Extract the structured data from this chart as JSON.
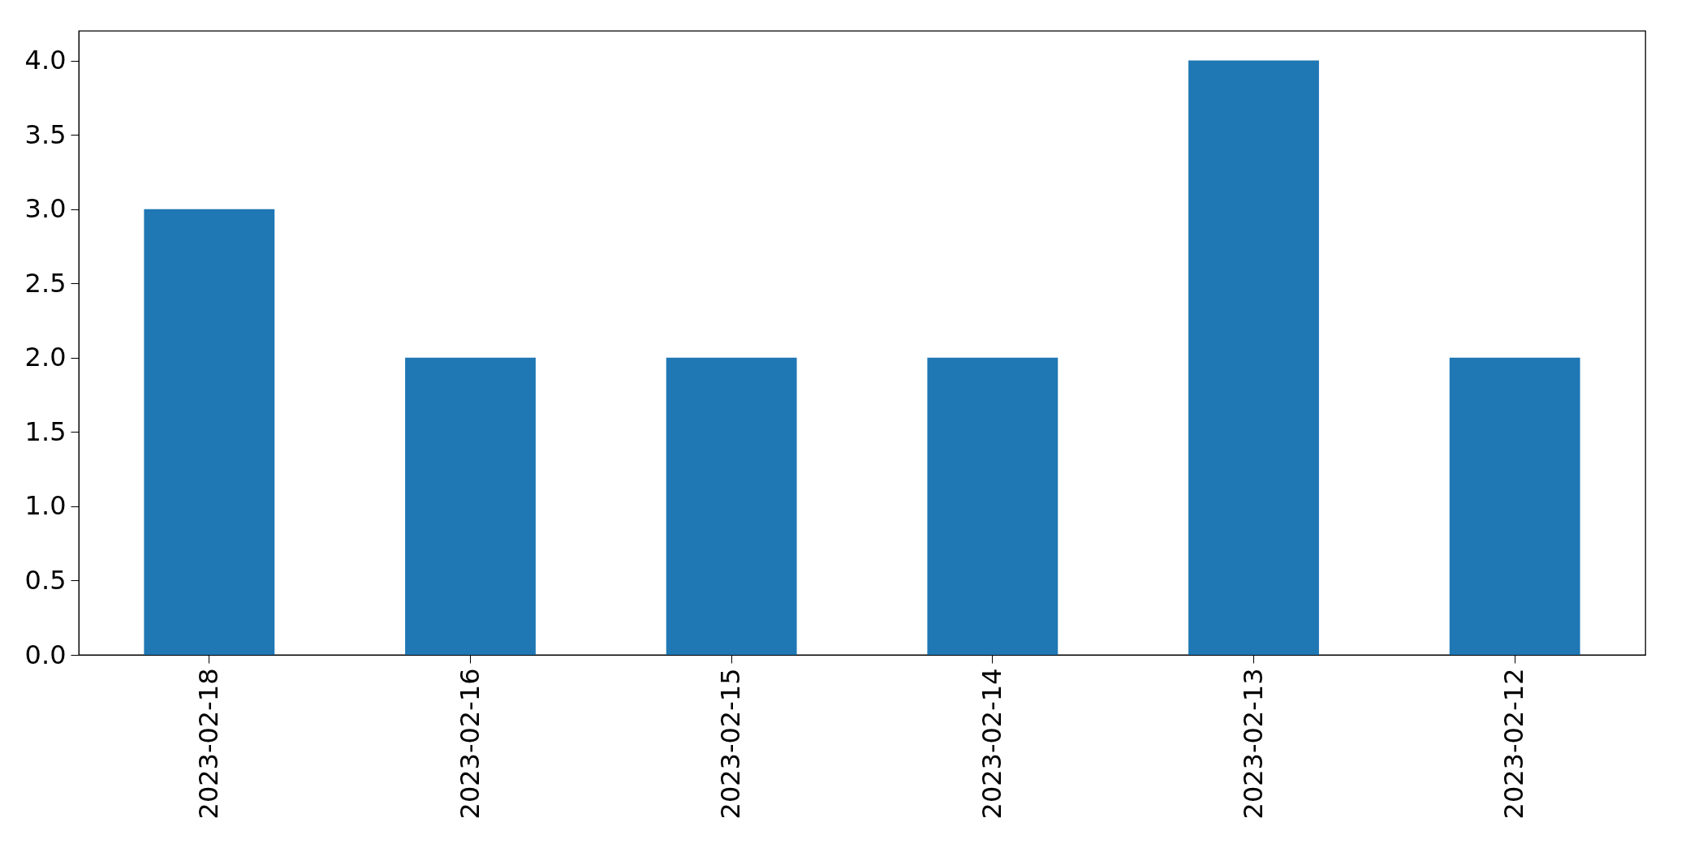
{
  "chart_data": {
    "type": "bar",
    "categories": [
      "2023-02-18",
      "2023-02-16",
      "2023-02-15",
      "2023-02-14",
      "2023-02-13",
      "2023-02-12"
    ],
    "values": [
      3,
      2,
      2,
      2,
      4,
      2
    ],
    "color": "#1f77b4",
    "ylim": [
      0,
      4.2
    ],
    "yticks": [
      {
        "value": 0,
        "label": "0.0"
      },
      {
        "value": 0.5,
        "label": "0.5"
      },
      {
        "value": 1,
        "label": "1.0"
      },
      {
        "value": 1.5,
        "label": "1.5"
      },
      {
        "value": 2,
        "label": "2.0"
      },
      {
        "value": 2.5,
        "label": "2.5"
      },
      {
        "value": 3,
        "label": "3.0"
      },
      {
        "value": 3.5,
        "label": "3.5"
      },
      {
        "value": 4,
        "label": "4.0"
      }
    ],
    "grid": false
  }
}
